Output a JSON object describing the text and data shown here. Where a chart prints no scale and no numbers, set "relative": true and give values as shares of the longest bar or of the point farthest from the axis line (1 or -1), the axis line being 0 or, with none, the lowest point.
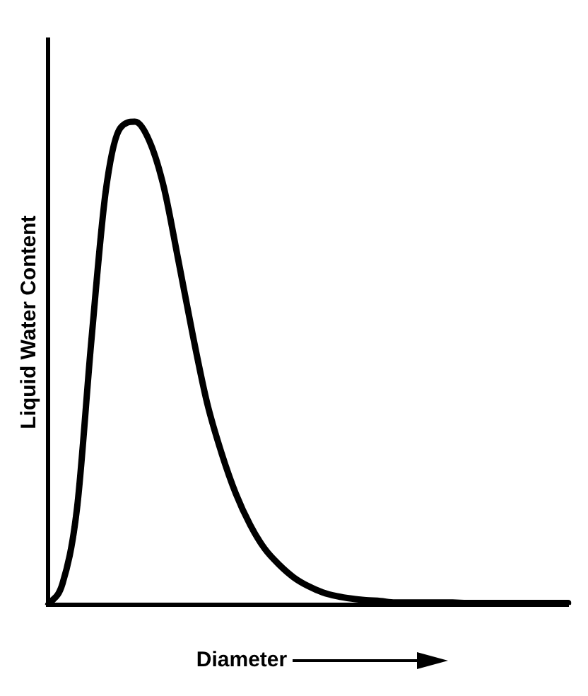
{
  "chart_data": {
    "type": "line",
    "relative": true,
    "xlabel": "Diameter",
    "ylabel": "Liquid Water Content",
    "marker": "none",
    "line_style": "solid",
    "color": "#000000",
    "categories": [
      null,
      null,
      null,
      null,
      null,
      null,
      null,
      null,
      null,
      null,
      null,
      null,
      null,
      null,
      null,
      null,
      null,
      null,
      null,
      null,
      null,
      null,
      null,
      null,
      null,
      null,
      null,
      null,
      null,
      null,
      null,
      null,
      null,
      null,
      null,
      null,
      null
    ],
    "values": [
      0,
      0.044,
      0.199,
      0.548,
      0.858,
      0.987,
      1,
      0.961,
      0.866,
      0.716,
      0.561,
      0.419,
      0.315,
      0.23,
      0.165,
      0.116,
      0.083,
      0.057,
      0.039,
      0.026,
      0.018,
      0.013,
      0.01,
      0.008,
      0.005,
      0.005,
      0.005,
      0.005,
      0.005,
      0.004,
      0.004,
      0.004,
      0.004,
      0.004,
      0.004,
      0.004,
      0.004
    ]
  }
}
